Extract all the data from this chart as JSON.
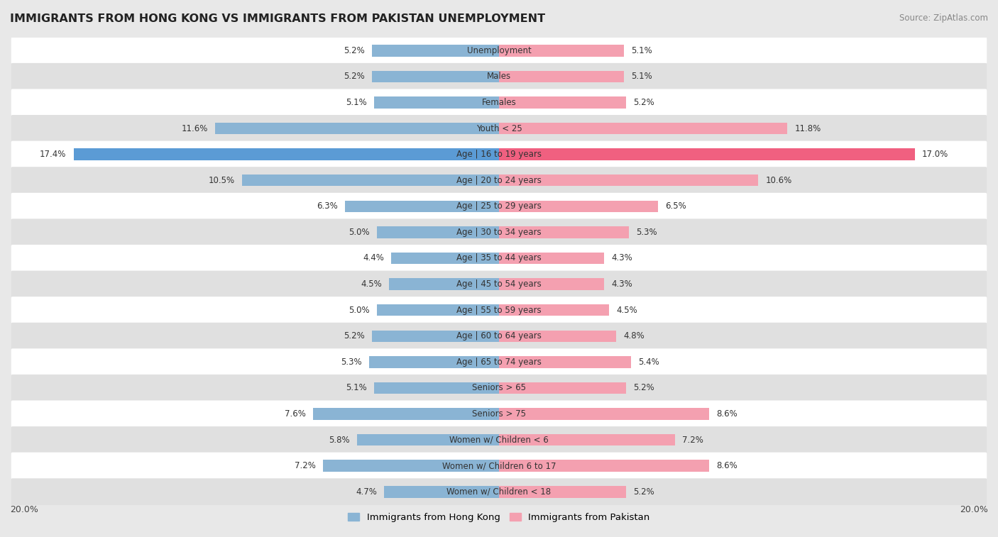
{
  "title": "IMMIGRANTS FROM HONG KONG VS IMMIGRANTS FROM PAKISTAN UNEMPLOYMENT",
  "source": "Source: ZipAtlas.com",
  "categories": [
    "Unemployment",
    "Males",
    "Females",
    "Youth < 25",
    "Age | 16 to 19 years",
    "Age | 20 to 24 years",
    "Age | 25 to 29 years",
    "Age | 30 to 34 years",
    "Age | 35 to 44 years",
    "Age | 45 to 54 years",
    "Age | 55 to 59 years",
    "Age | 60 to 64 years",
    "Age | 65 to 74 years",
    "Seniors > 65",
    "Seniors > 75",
    "Women w/ Children < 6",
    "Women w/ Children 6 to 17",
    "Women w/ Children < 18"
  ],
  "hong_kong": [
    5.2,
    5.2,
    5.1,
    11.6,
    17.4,
    10.5,
    6.3,
    5.0,
    4.4,
    4.5,
    5.0,
    5.2,
    5.3,
    5.1,
    7.6,
    5.8,
    7.2,
    4.7
  ],
  "pakistan": [
    5.1,
    5.1,
    5.2,
    11.8,
    17.0,
    10.6,
    6.5,
    5.3,
    4.3,
    4.3,
    4.5,
    4.8,
    5.4,
    5.2,
    8.6,
    7.2,
    8.6,
    5.2
  ],
  "hk_color": "#8ab4d4",
  "pak_color": "#f4a0b0",
  "hk_color_highlight": "#5b9bd5",
  "pak_color_highlight": "#f06080",
  "bg_color": "#e8e8e8",
  "row_color_white": "#ffffff",
  "row_color_gray": "#e0e0e0",
  "xlim": 20.0,
  "legend_hk": "Immigrants from Hong Kong",
  "legend_pak": "Immigrants from Pakistan"
}
